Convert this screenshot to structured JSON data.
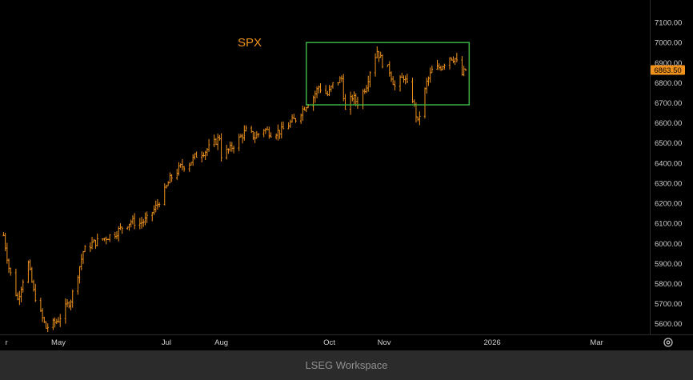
{
  "chart_data": {
    "type": "ohlc",
    "series_label": "SPX",
    "last_price": "6863.50",
    "y_ticks": [
      "7100.00",
      "7000.00",
      "6900.00",
      "6800.00",
      "6700.00",
      "6600.00",
      "6500.00",
      "6400.00",
      "6300.00",
      "6200.00",
      "6100.00",
      "6000.00",
      "5900.00",
      "5800.00",
      "5700.00",
      "5600.00"
    ],
    "x_ticks": [
      {
        "label": "r",
        "date": "2025-04-01"
      },
      {
        "label": "May",
        "date": "2025-05-01"
      },
      {
        "label": "Jul",
        "date": "2025-07-01"
      },
      {
        "label": "Aug",
        "date": "2025-08-01"
      },
      {
        "label": "Oct",
        "date": "2025-10-01"
      },
      {
        "label": "Nov",
        "date": "2025-11-01"
      },
      {
        "label": "2026",
        "date": "2026-01-01"
      },
      {
        "label": "Mar",
        "date": "2026-03-01"
      }
    ],
    "ylim": [
      5555,
      7180
    ],
    "xlim": [
      "2025-03-29",
      "2026-03-31"
    ],
    "highlight_box": {
      "x_start": "2025-09-18",
      "x_end": "2025-12-19",
      "y_low": 6690,
      "y_high": 7000,
      "color": "#3cb043"
    },
    "colors": {
      "bars": "#f0921c",
      "price_label_bg": "#f0921c",
      "box": "#3cb043"
    },
    "closes": [
      {
        "date": "2025-03-31",
        "close": 6040
      },
      {
        "date": "2025-04-03",
        "close": 5880
      },
      {
        "date": "2025-04-08",
        "close": 5720
      },
      {
        "date": "2025-04-11",
        "close": 5820
      },
      {
        "date": "2025-04-14",
        "close": 5900
      },
      {
        "date": "2025-04-17",
        "close": 5760
      },
      {
        "date": "2025-04-21",
        "close": 5650
      },
      {
        "date": "2025-04-24",
        "close": 5580
      },
      {
        "date": "2025-04-28",
        "close": 5600
      },
      {
        "date": "2025-05-01",
        "close": 5620
      },
      {
        "date": "2025-05-05",
        "close": 5680
      },
      {
        "date": "2025-05-08",
        "close": 5720
      },
      {
        "date": "2025-05-12",
        "close": 5850
      },
      {
        "date": "2025-05-15",
        "close": 5960
      },
      {
        "date": "2025-05-20",
        "close": 6000
      },
      {
        "date": "2025-05-23",
        "close": 6010
      },
      {
        "date": "2025-05-28",
        "close": 6030
      },
      {
        "date": "2025-06-02",
        "close": 6050
      },
      {
        "date": "2025-06-06",
        "close": 6080
      },
      {
        "date": "2025-06-11",
        "close": 6110
      },
      {
        "date": "2025-06-16",
        "close": 6100
      },
      {
        "date": "2025-06-20",
        "close": 6120
      },
      {
        "date": "2025-06-25",
        "close": 6180
      },
      {
        "date": "2025-06-30",
        "close": 6260
      },
      {
        "date": "2025-07-03",
        "close": 6320
      },
      {
        "date": "2025-07-09",
        "close": 6380
      },
      {
        "date": "2025-07-14",
        "close": 6400
      },
      {
        "date": "2025-07-18",
        "close": 6440
      },
      {
        "date": "2025-07-23",
        "close": 6460
      },
      {
        "date": "2025-07-28",
        "close": 6500
      },
      {
        "date": "2025-07-31",
        "close": 6530
      },
      {
        "date": "2025-08-01",
        "close": 6440
      },
      {
        "date": "2025-08-06",
        "close": 6470
      },
      {
        "date": "2025-08-11",
        "close": 6520
      },
      {
        "date": "2025-08-15",
        "close": 6560
      },
      {
        "date": "2025-08-20",
        "close": 6530
      },
      {
        "date": "2025-08-25",
        "close": 6570
      },
      {
        "date": "2025-08-29",
        "close": 6550
      },
      {
        "date": "2025-09-04",
        "close": 6560
      },
      {
        "date": "2025-09-09",
        "close": 6600
      },
      {
        "date": "2025-09-12",
        "close": 6620
      },
      {
        "date": "2025-09-17",
        "close": 6680
      },
      {
        "date": "2025-09-22",
        "close": 6730
      },
      {
        "date": "2025-09-25",
        "close": 6780
      },
      {
        "date": "2025-09-30",
        "close": 6740
      },
      {
        "date": "2025-10-03",
        "close": 6790
      },
      {
        "date": "2025-10-08",
        "close": 6820
      },
      {
        "date": "2025-10-10",
        "close": 6660
      },
      {
        "date": "2025-10-14",
        "close": 6730
      },
      {
        "date": "2025-10-17",
        "close": 6700
      },
      {
        "date": "2025-10-22",
        "close": 6790
      },
      {
        "date": "2025-10-24",
        "close": 6860
      },
      {
        "date": "2025-10-28",
        "close": 6960
      },
      {
        "date": "2025-10-31",
        "close": 6900
      },
      {
        "date": "2025-11-04",
        "close": 6860
      },
      {
        "date": "2025-11-07",
        "close": 6780
      },
      {
        "date": "2025-11-12",
        "close": 6830
      },
      {
        "date": "2025-11-17",
        "close": 6720
      },
      {
        "date": "2025-11-20",
        "close": 6600
      },
      {
        "date": "2025-11-25",
        "close": 6800
      },
      {
        "date": "2025-11-28",
        "close": 6860
      },
      {
        "date": "2025-12-03",
        "close": 6880
      },
      {
        "date": "2025-12-08",
        "close": 6930
      },
      {
        "date": "2025-12-11",
        "close": 6920
      },
      {
        "date": "2025-12-15",
        "close": 6840
      },
      {
        "date": "2025-12-17",
        "close": 6863.5
      }
    ]
  },
  "footer": {
    "brand": "LSEG Workspace"
  },
  "icons": {
    "settings": "gear-icon"
  }
}
